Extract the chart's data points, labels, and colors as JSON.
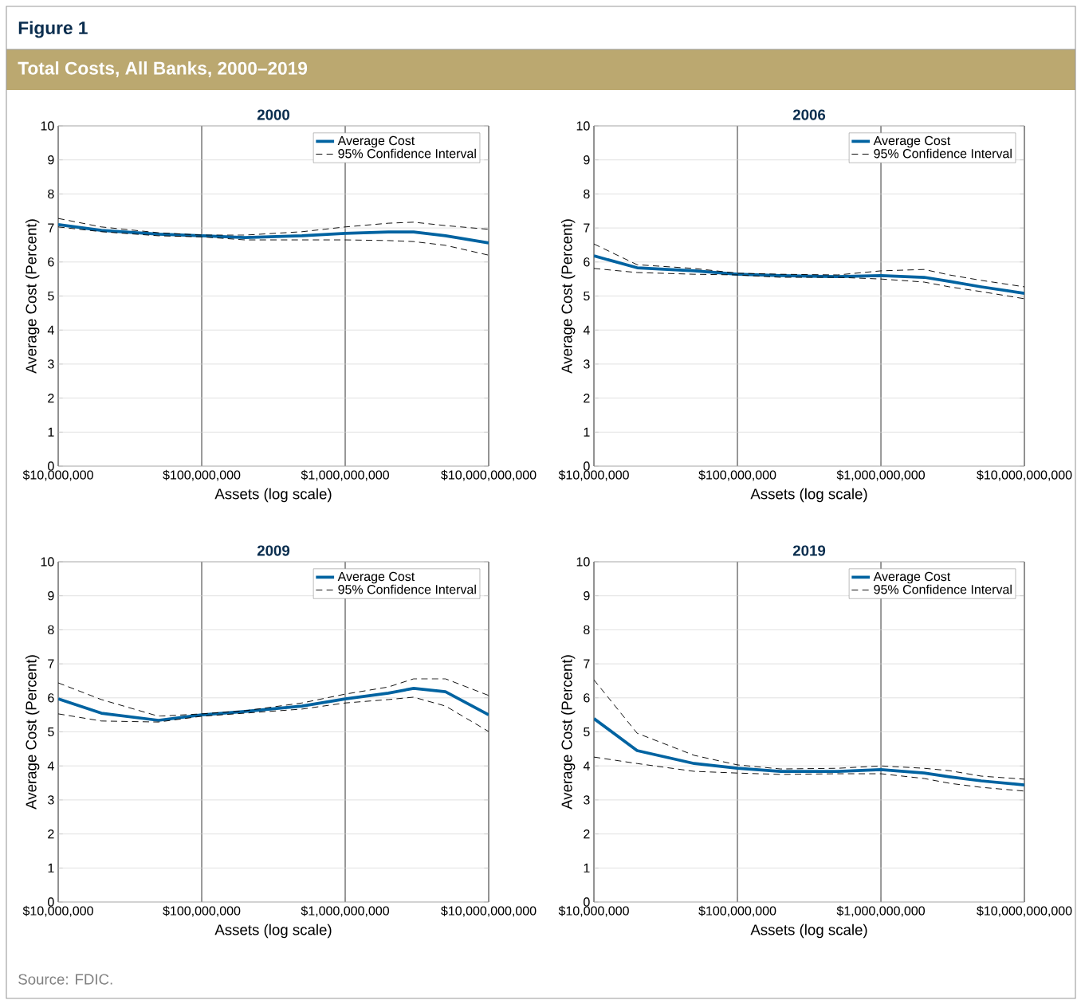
{
  "chart_data": [
    {
      "type": "line",
      "title": "2000",
      "xlabel": "Assets (log scale)",
      "ylabel": "Average Cost (Percent)",
      "annotations": [
        "Figure 1",
        "Total Costs, All Banks, 2000–2019",
        "Source: FDIC."
      ],
      "x": [
        10000000,
        20000000,
        50000000,
        100000000,
        200000000,
        500000000,
        1000000000,
        2000000000,
        3000000000,
        5000000000,
        10000000000
      ],
      "series": [
        {
          "name": "Average Cost",
          "color": "#0063a1",
          "values": [
            7.1,
            6.93,
            6.82,
            6.77,
            6.72,
            6.77,
            6.84,
            6.88,
            6.88,
            6.77,
            6.56
          ]
        },
        {
          "name": "95% Confidence Interval",
          "color": "#000000",
          "line_style": "dashed",
          "values": [
            7.28,
            7.03,
            6.86,
            6.79,
            6.79,
            6.89,
            7.03,
            7.14,
            7.17,
            7.07,
            6.96
          ]
        },
        {
          "color": "#000000",
          "line_style": "dashed",
          "values": [
            7.03,
            6.89,
            6.77,
            6.74,
            6.65,
            6.65,
            6.65,
            6.63,
            6.6,
            6.49,
            6.2
          ]
        }
      ],
      "xlim": [
        10000000,
        10000000000
      ],
      "xticks": [
        {
          "value": 10000000,
          "label": "$10,000,000"
        },
        {
          "value": 100000000,
          "label": "$100,000,000"
        },
        {
          "value": 1000000000,
          "label": "$1,000,000,000"
        },
        {
          "value": 10000000000,
          "label": "$10,000,000,000"
        }
      ],
      "ylim": [
        0,
        10
      ],
      "yticks": [
        0,
        1,
        2,
        3,
        4,
        5,
        6,
        7,
        8,
        9,
        10
      ],
      "log": "x",
      "grid": true,
      "legend": "top right"
    },
    {
      "type": "line",
      "title": "2006",
      "xlabel": "Assets (log scale)",
      "ylabel": "Average Cost (Percent)",
      "x": [
        10000000,
        20000000,
        50000000,
        100000000,
        200000000,
        500000000,
        1000000000,
        2000000000,
        3000000000,
        5000000000,
        10000000000
      ],
      "series": [
        {
          "name": "Average Cost",
          "color": "#0063a1",
          "values": [
            6.18,
            5.83,
            5.74,
            5.64,
            5.6,
            5.57,
            5.6,
            5.55,
            5.43,
            5.27,
            5.08
          ]
        },
        {
          "name": "95% Confidence Interval",
          "color": "#000000",
          "line_style": "dashed",
          "values": [
            6.53,
            5.92,
            5.81,
            5.67,
            5.64,
            5.62,
            5.74,
            5.78,
            5.62,
            5.46,
            5.27
          ]
        },
        {
          "color": "#000000",
          "line_style": "dashed",
          "values": [
            5.81,
            5.69,
            5.64,
            5.62,
            5.55,
            5.55,
            5.5,
            5.41,
            5.27,
            5.13,
            4.92
          ]
        }
      ],
      "xlim": [
        10000000,
        10000000000
      ],
      "xticks": [
        {
          "value": 10000000,
          "label": "$10,000,000"
        },
        {
          "value": 100000000,
          "label": "$100,000,000"
        },
        {
          "value": 1000000000,
          "label": "$1,000,000,000"
        },
        {
          "value": 10000000000,
          "label": "$10,000,000,000"
        }
      ],
      "ylim": [
        0,
        10
      ],
      "yticks": [
        0,
        1,
        2,
        3,
        4,
        5,
        6,
        7,
        8,
        9,
        10
      ],
      "log": "x",
      "grid": true,
      "legend": "top right"
    },
    {
      "type": "line",
      "title": "2009",
      "xlabel": "Assets (log scale)",
      "ylabel": "Average Cost (Percent)",
      "x": [
        10000000,
        20000000,
        50000000,
        100000000,
        200000000,
        500000000,
        1000000000,
        2000000000,
        3000000000,
        5000000000,
        10000000000
      ],
      "series": [
        {
          "name": "Average Cost",
          "color": "#0063a1",
          "values": [
            5.97,
            5.55,
            5.34,
            5.5,
            5.6,
            5.76,
            5.97,
            6.14,
            6.28,
            6.18,
            5.5
          ]
        },
        {
          "name": "95% Confidence Interval",
          "color": "#000000",
          "line_style": "dashed",
          "values": [
            6.44,
            5.95,
            5.46,
            5.53,
            5.62,
            5.85,
            6.11,
            6.32,
            6.56,
            6.56,
            6.07
          ]
        },
        {
          "color": "#000000",
          "line_style": "dashed",
          "values": [
            5.53,
            5.32,
            5.29,
            5.46,
            5.55,
            5.67,
            5.85,
            5.95,
            6.02,
            5.76,
            5.01
          ]
        }
      ],
      "xlim": [
        10000000,
        10000000000
      ],
      "xticks": [
        {
          "value": 10000000,
          "label": "$10,000,000"
        },
        {
          "value": 100000000,
          "label": "$100,000,000"
        },
        {
          "value": 1000000000,
          "label": "$1,000,000,000"
        },
        {
          "value": 10000000000,
          "label": "$10,000,000,000"
        }
      ],
      "ylim": [
        0,
        10
      ],
      "yticks": [
        0,
        1,
        2,
        3,
        4,
        5,
        6,
        7,
        8,
        9,
        10
      ],
      "log": "x",
      "grid": true,
      "legend": "top right"
    },
    {
      "type": "line",
      "title": "2019",
      "xlabel": "Assets (log scale)",
      "ylabel": "Average Cost (Percent)",
      "x": [
        10000000,
        20000000,
        50000000,
        100000000,
        200000000,
        500000000,
        1000000000,
        2000000000,
        3000000000,
        5000000000,
        10000000000
      ],
      "series": [
        {
          "name": "Average Cost",
          "color": "#0063a1",
          "values": [
            5.39,
            4.45,
            4.07,
            3.93,
            3.84,
            3.84,
            3.89,
            3.79,
            3.68,
            3.56,
            3.44
          ]
        },
        {
          "name": "95% Confidence Interval",
          "color": "#000000",
          "line_style": "dashed",
          "values": [
            6.53,
            4.96,
            4.31,
            4.03,
            3.91,
            3.93,
            4.0,
            3.93,
            3.86,
            3.7,
            3.61
          ]
        },
        {
          "color": "#000000",
          "line_style": "dashed",
          "values": [
            4.26,
            4.07,
            3.84,
            3.79,
            3.75,
            3.77,
            3.77,
            3.63,
            3.49,
            3.37,
            3.26
          ]
        }
      ],
      "xlim": [
        10000000,
        10000000000
      ],
      "xticks": [
        {
          "value": 10000000,
          "label": "$10,000,000"
        },
        {
          "value": 100000000,
          "label": "$100,000,000"
        },
        {
          "value": 1000000000,
          "label": "$1,000,000,000"
        },
        {
          "value": 10000000000,
          "label": "$10,000,000,000"
        }
      ],
      "ylim": [
        0,
        10
      ],
      "yticks": [
        0,
        1,
        2,
        3,
        4,
        5,
        6,
        7,
        8,
        9,
        10
      ],
      "log": "x",
      "grid": true,
      "legend": "top right"
    }
  ]
}
